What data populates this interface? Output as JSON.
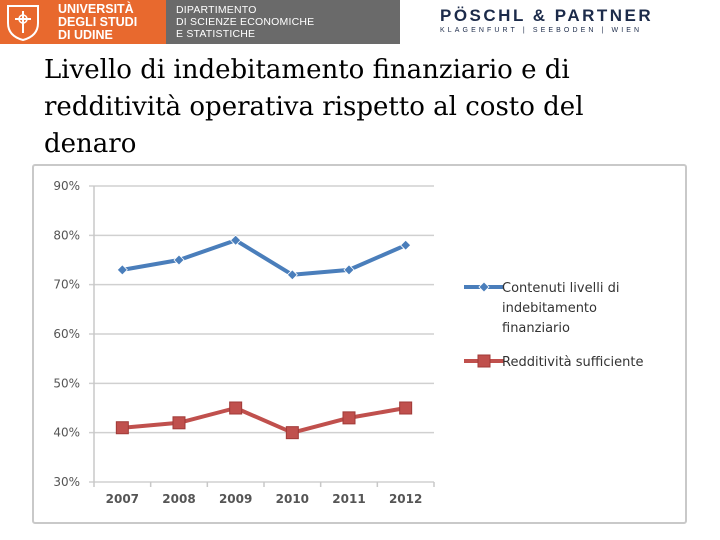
{
  "header": {
    "university_lines": [
      "UNIVERSITÀ",
      "DEGLI STUDI",
      "DI UDINE"
    ],
    "department_lines": [
      "DIPARTIMENTO",
      "DI SCIENZE ECONOMICHE",
      "E STATISTICHE"
    ],
    "partner_name": "PÖSCHL & PARTNER",
    "partner_locations": "KLAGENFURT | SEEBODEN | WIEN",
    "colors": {
      "university": "#e8692e",
      "department": "#6a6a6a",
      "partner": "#1c2b4a"
    }
  },
  "slide": {
    "title": "Livello di indebitamento finanziario e di redditività operativa rispetto al costo del denaro"
  },
  "chart_data": {
    "type": "line",
    "title": "",
    "xlabel": "",
    "ylabel": "",
    "categories": [
      "2007",
      "2008",
      "2009",
      "2010",
      "2011",
      "2012"
    ],
    "ylim": [
      30,
      90
    ],
    "yticks": [
      30,
      40,
      50,
      60,
      70,
      80,
      90
    ],
    "ytick_labels": [
      "30%",
      "40%",
      "50%",
      "60%",
      "70%",
      "80%",
      "90%"
    ],
    "grid": true,
    "legend_position": "right",
    "series": [
      {
        "name": "Contenuti livelli di indebitamento finanziario",
        "legend_lines": [
          "Contenuti livelli di",
          "indebitamento",
          "finanziario"
        ],
        "values": [
          73,
          75,
          79,
          72,
          73,
          78
        ],
        "color": "#4a7ebb",
        "marker": "diamond"
      },
      {
        "name": "Redditività sufficiente",
        "legend_lines": [
          "Redditività sufficiente"
        ],
        "values": [
          41,
          42,
          45,
          40,
          43,
          45
        ],
        "color": "#c0504d",
        "marker": "square"
      }
    ]
  }
}
